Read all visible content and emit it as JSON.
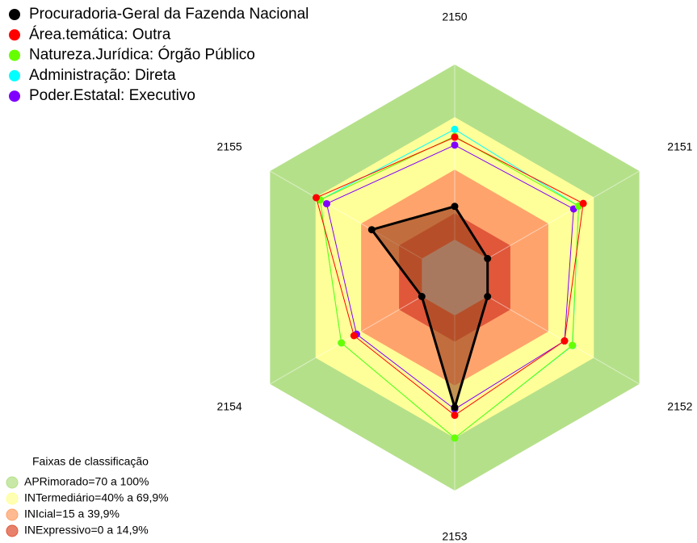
{
  "chart_data": {
    "type": "radar",
    "categories": [
      "2150",
      "2151",
      "2152",
      "2153",
      "2154",
      "2155"
    ],
    "ylim": [
      0,
      100
    ],
    "series": [
      {
        "name": "Procuradoria-Geral da Fazenda Nacional",
        "color": "#000000",
        "fill": "#9a4a1e",
        "values": [
          19,
          0,
          0,
          52.5,
          0,
          33
        ]
      },
      {
        "name": "Área.temática: Outra",
        "color": "#ff0000",
        "values": [
          58.5,
          63,
          50.7,
          57,
          44.7,
          69.6
        ]
      },
      {
        "name": "Natureza.Jurídica: Órgão Público",
        "color": "#66ff00",
        "values": [
          59,
          60,
          55.8,
          70,
          53,
          67
        ]
      },
      {
        "name": "Administração: Direta",
        "color": "#00ffff",
        "values": [
          63,
          60,
          56,
          70,
          53,
          67
        ]
      },
      {
        "name": "Poder.Estatal: Executivo",
        "color": "#8000ff",
        "values": [
          54,
          56.7,
          50.7,
          53.5,
          43,
          62.7
        ]
      }
    ],
    "bands_title": "Faixas de classificação",
    "bands": [
      {
        "name": "APRimorado=70 a 100%",
        "color": "#b5e08a",
        "min": 70,
        "max": 100
      },
      {
        "name": "INTermediário=40% a 69,9%",
        "color": "#ffff99",
        "min": 40,
        "max": 70
      },
      {
        "name": "INIcial=15 a 39,9%",
        "color": "#ffa36c",
        "min": 15,
        "max": 40
      },
      {
        "name": "INExpressivo=0 a 14,9%",
        "color": "#e0573a",
        "min": 0,
        "max": 15
      }
    ]
  }
}
